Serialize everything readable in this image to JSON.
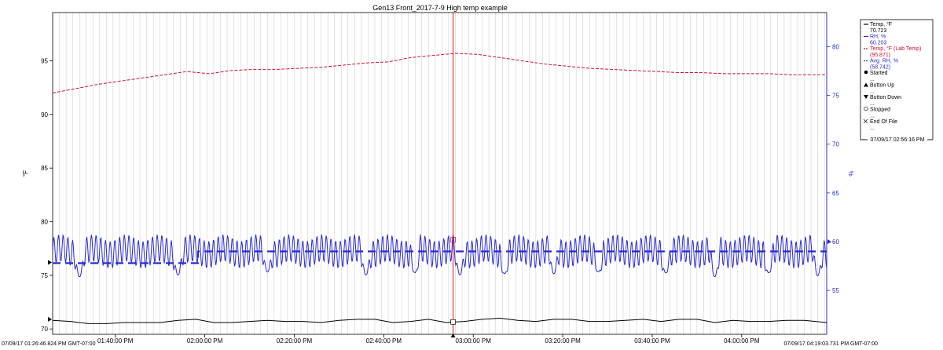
{
  "chart_data": {
    "type": "line",
    "title": "Gen13 Front_2017-7-9 High temp example",
    "ylabel_left": "°F",
    "ylabel_right": "%",
    "xlim_minutes": [
      0,
      173
    ],
    "ylim_left": [
      69.5,
      99.5
    ],
    "ylim_right": [
      50.5,
      83.5
    ],
    "x_ticks": [
      {
        "min": 14,
        "label": "01:40:00 PM"
      },
      {
        "min": 34,
        "label": "02:00:00 PM"
      },
      {
        "min": 54,
        "label": "02:20:00 PM"
      },
      {
        "min": 74,
        "label": "02:40:00 PM"
      },
      {
        "min": 94,
        "label": "03:00:00 PM"
      },
      {
        "min": 114,
        "label": "03:20:00 PM"
      },
      {
        "min": 134,
        "label": "03:40:00 PM"
      },
      {
        "min": 154,
        "label": "04:00:00 PM"
      }
    ],
    "y_ticks_left": [
      70,
      75,
      80,
      85,
      90,
      95
    ],
    "y_ticks_right": [
      55,
      60,
      65,
      70,
      75,
      80
    ],
    "start_label": "07/09/17 01:26:46.824 PM GMT-07:00",
    "end_label": "07/09/17 04:19:03.731 PM GMT-07:00",
    "cursor_min": 89.5,
    "cursor_label": "07/09/17 02:56:16 PM",
    "series": [
      {
        "name": "Temp, °F",
        "axis": "left",
        "color": "#000000",
        "style": "solid",
        "readout": "70.723",
        "x": [
          0,
          4,
          8,
          12,
          16,
          20,
          24,
          28,
          32,
          36,
          40,
          44,
          48,
          52,
          56,
          60,
          64,
          68,
          72,
          76,
          80,
          84,
          88,
          92,
          96,
          100,
          104,
          108,
          112,
          116,
          120,
          124,
          128,
          132,
          136,
          140,
          144,
          148,
          152,
          156,
          160,
          164,
          168,
          173
        ],
        "y": [
          70.8,
          70.7,
          70.5,
          70.5,
          70.6,
          70.6,
          70.6,
          70.8,
          70.9,
          70.6,
          70.6,
          70.7,
          70.8,
          70.7,
          70.7,
          70.6,
          70.8,
          70.9,
          70.9,
          70.6,
          70.7,
          70.9,
          70.6,
          70.7,
          70.9,
          71.0,
          70.8,
          70.7,
          70.9,
          70.9,
          70.7,
          70.7,
          70.8,
          70.9,
          70.7,
          70.9,
          70.9,
          70.6,
          70.8,
          70.7,
          70.7,
          70.8,
          70.8,
          70.6
        ]
      },
      {
        "name": "RH, %",
        "axis": "right",
        "color": "#2a2ad4",
        "style": "solid",
        "readout": "60.203",
        "base": 59.0,
        "amplitude": 1.4,
        "period_min": 1.05,
        "dips": [
          {
            "min": 6,
            "low": 56.4
          },
          {
            "min": 28,
            "low": 56.6
          },
          {
            "min": 48,
            "low": 56.9
          },
          {
            "min": 70,
            "low": 56.6
          },
          {
            "min": 81,
            "low": 56.8
          },
          {
            "min": 91,
            "low": 56.6
          },
          {
            "min": 101,
            "low": 56.7
          },
          {
            "min": 112,
            "low": 56.7
          },
          {
            "min": 122,
            "low": 56.9
          },
          {
            "min": 137,
            "low": 56.8
          },
          {
            "min": 148,
            "low": 56.4
          },
          {
            "min": 160,
            "low": 56.8
          },
          {
            "min": 171,
            "low": 56.5
          }
        ]
      },
      {
        "name": "Temp, °F (Lab Temp)",
        "axis": "left",
        "color": "#cc1133",
        "style": "dashed",
        "readout": "(95.871)",
        "x": [
          0,
          5,
          10,
          15,
          20,
          25,
          30,
          35,
          40,
          45,
          50,
          55,
          60,
          65,
          70,
          75,
          80,
          85,
          90,
          95,
          100,
          105,
          110,
          115,
          120,
          125,
          130,
          135,
          140,
          145,
          150,
          155,
          160,
          165,
          170,
          173
        ],
        "y": [
          92.0,
          92.4,
          92.8,
          93.1,
          93.4,
          93.7,
          94.0,
          93.8,
          94.1,
          94.2,
          94.2,
          94.3,
          94.4,
          94.6,
          94.8,
          94.9,
          95.3,
          95.5,
          95.7,
          95.6,
          95.3,
          95.0,
          94.7,
          94.5,
          94.3,
          94.2,
          94.1,
          94.0,
          93.9,
          93.9,
          93.8,
          93.8,
          93.8,
          93.7,
          93.7,
          93.7
        ]
      },
      {
        "name": "Avg. RH, %",
        "axis": "right",
        "color": "#2a2ad4",
        "style": "dashed",
        "readout": "(58.742)",
        "x": [
          0,
          32.5,
          32.5,
          173
        ],
        "y": [
          57.8,
          57.8,
          59.0,
          59.0
        ]
      }
    ],
    "legend": [
      {
        "symbol": "line",
        "color": "#000000",
        "label": "Temp, °F",
        "value": "70.723"
      },
      {
        "symbol": "line",
        "color": "#2a2ad4",
        "label": "RH, %",
        "value": "60.203"
      },
      {
        "symbol": "dash",
        "color": "#cc1133",
        "label": "Temp, °F (Lab Temp)",
        "value": "(95.871)"
      },
      {
        "symbol": "dash",
        "color": "#2a2ad4",
        "label": "Avg. RH, %",
        "value": "(58.742)"
      },
      {
        "symbol": "circle",
        "color": "#000000",
        "label": "Started",
        "value": "..."
      },
      {
        "symbol": "triangle-up",
        "color": "#000000",
        "label": "Button Up",
        "value": "..."
      },
      {
        "symbol": "triangle-down",
        "color": "#000000",
        "label": "Button Down",
        "value": "..."
      },
      {
        "symbol": "open-circle",
        "color": "#000000",
        "label": "Stopped",
        "value": "..."
      },
      {
        "symbol": "cross",
        "color": "#000000",
        "label": "End Of File",
        "value": "..."
      }
    ],
    "legend_placement": "right",
    "grid": {
      "vertical_minor_every_min": 1.5,
      "horizontal": false
    }
  }
}
